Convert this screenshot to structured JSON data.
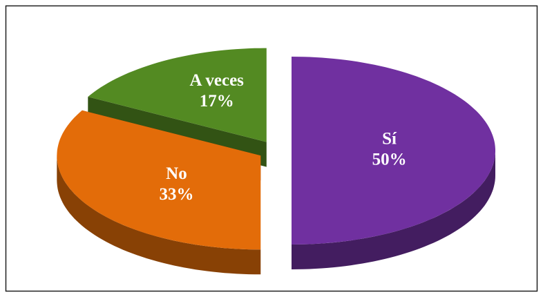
{
  "chart_data": {
    "type": "pie",
    "categories": [
      "Sí",
      "No",
      "A veces"
    ],
    "values": [
      50,
      33,
      17
    ],
    "value_labels": [
      "50%",
      "33%",
      "17%"
    ],
    "colors": [
      "#7030a0",
      "#e36c09",
      "#538a22"
    ]
  }
}
